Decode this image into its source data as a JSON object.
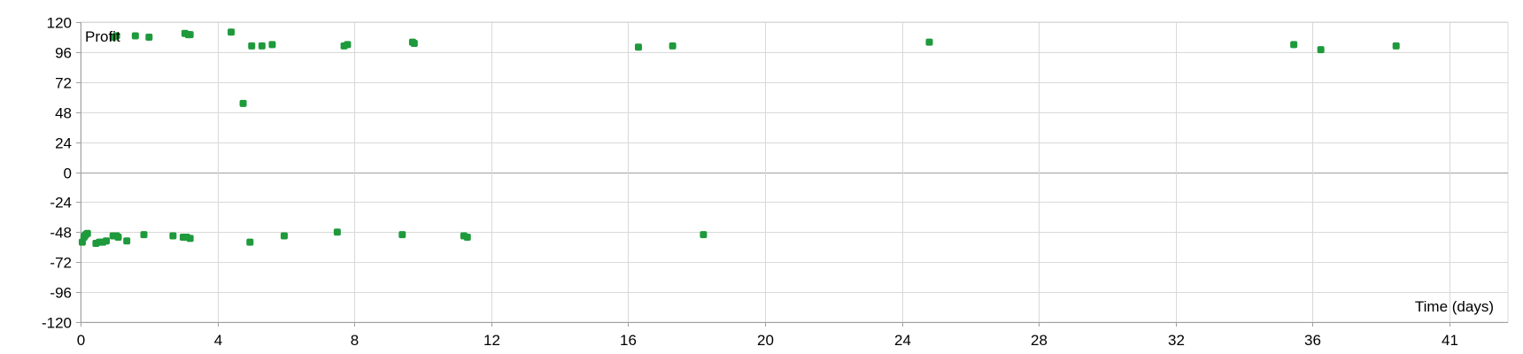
{
  "chart_data": {
    "type": "scatter",
    "title": "",
    "xlabel": "Time (days)",
    "ylabel": "Profit",
    "xlim": [
      0,
      41
    ],
    "ylim": [
      -120,
      120
    ],
    "x_ticks": [
      0,
      4,
      8,
      12,
      16,
      20,
      24,
      28,
      32,
      36,
      41
    ],
    "y_ticks": [
      120,
      96,
      72,
      48,
      24,
      0,
      -24,
      -48,
      -72,
      -96,
      -120
    ],
    "grid": true,
    "marker_color": "#1e9a3c",
    "gridline_color": "#d9d9d9",
    "axis_color": "#a0a0a0",
    "series": [
      {
        "values": [
          [
            0.05,
            -56
          ],
          [
            0.1,
            -52
          ],
          [
            0.12,
            -51
          ],
          [
            0.15,
            -50
          ],
          [
            0.2,
            -49
          ],
          [
            0.45,
            -57
          ],
          [
            0.55,
            -56
          ],
          [
            0.65,
            -56
          ],
          [
            0.75,
            -55
          ],
          [
            0.95,
            -51
          ],
          [
            1.05,
            -51
          ],
          [
            1.1,
            -52
          ],
          [
            1.35,
            -55
          ],
          [
            1.85,
            -50
          ],
          [
            2.7,
            -51
          ],
          [
            3.0,
            -52
          ],
          [
            3.1,
            -52
          ],
          [
            3.2,
            -53
          ],
          [
            4.95,
            -56
          ],
          [
            5.95,
            -51
          ],
          [
            7.5,
            -48
          ],
          [
            9.4,
            -50
          ],
          [
            11.2,
            -51
          ],
          [
            11.3,
            -52
          ],
          [
            18.2,
            -50
          ],
          [
            0.95,
            108
          ],
          [
            1.05,
            109
          ],
          [
            1.6,
            109
          ],
          [
            2.0,
            108
          ],
          [
            3.05,
            111
          ],
          [
            3.15,
            110
          ],
          [
            3.2,
            110
          ],
          [
            4.4,
            112
          ],
          [
            4.75,
            55
          ],
          [
            5.0,
            101
          ],
          [
            5.3,
            101
          ],
          [
            5.6,
            102
          ],
          [
            7.7,
            101
          ],
          [
            7.8,
            102
          ],
          [
            9.7,
            104
          ],
          [
            9.75,
            103
          ],
          [
            16.3,
            100
          ],
          [
            17.3,
            101
          ],
          [
            24.8,
            104
          ],
          [
            35.45,
            102
          ],
          [
            36.3,
            98
          ],
          [
            39.05,
            101
          ]
        ]
      }
    ]
  }
}
